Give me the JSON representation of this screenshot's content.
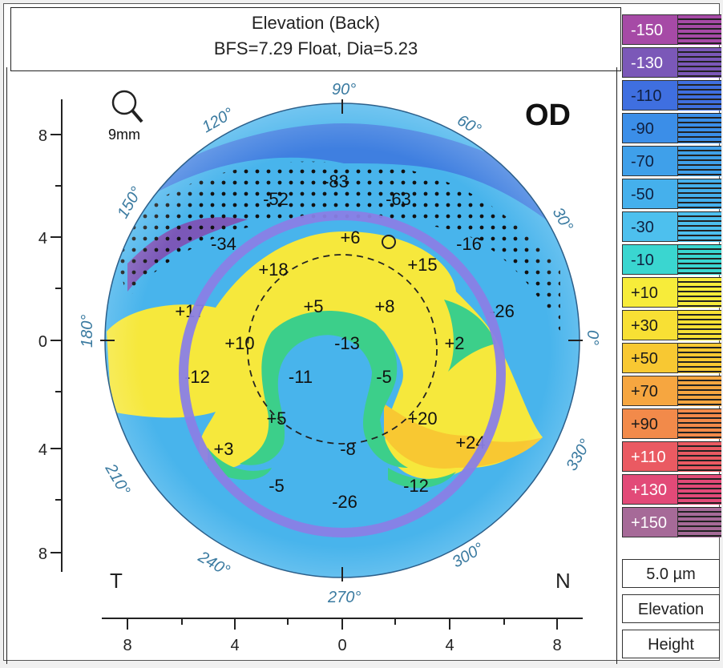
{
  "header": {
    "title": "Elevation (Back)",
    "subtitle": "BFS=7.29 Float, Dia=5.23"
  },
  "map": {
    "eye": "OD",
    "zoom_label": "9mm",
    "temporal": "T",
    "nasal": "N",
    "angles": [
      "90°",
      "60°",
      "30°",
      "0°",
      "330°",
      "300°",
      "270°",
      "240°",
      "210°",
      "180°",
      "150°",
      "120°"
    ],
    "y_ticks": [
      "8",
      "4",
      "0",
      "4",
      "8"
    ],
    "x_ticks": [
      "8",
      "4",
      "0",
      "4",
      "8"
    ],
    "values": [
      "-83",
      "-52",
      "-63",
      "-34",
      "+6",
      "-16",
      "+18",
      "+15",
      "+17",
      "+5",
      "+8",
      "-26",
      "+10",
      "-13",
      "+2",
      "-12",
      "-11",
      "-5",
      "+5",
      "+20",
      "+3",
      "-8",
      "+24",
      "-5",
      "-12",
      "-26"
    ],
    "highlight_color": "#8a7fe6"
  },
  "scale": {
    "levels": [
      {
        "label": "-150",
        "color": "#a64aa6"
      },
      {
        "label": "-130",
        "color": "#7b58b8"
      },
      {
        "label": "-110",
        "color": "#3f6fe0"
      },
      {
        "label": "-90",
        "color": "#3b8ee8"
      },
      {
        "label": "-70",
        "color": "#3fa0ea"
      },
      {
        "label": "-50",
        "color": "#45b0ec"
      },
      {
        "label": "-30",
        "color": "#4dc0ee"
      },
      {
        "label": "-10",
        "color": "#3ad6d0"
      },
      {
        "label": "+10",
        "color": "#f7ec3a"
      },
      {
        "label": "+30",
        "color": "#f8e034"
      },
      {
        "label": "+50",
        "color": "#f8c832"
      },
      {
        "label": "+70",
        "color": "#f6a640"
      },
      {
        "label": "+90",
        "color": "#f28a4a"
      },
      {
        "label": "+110",
        "color": "#ea5a62"
      },
      {
        "label": "+130",
        "color": "#e24a78"
      },
      {
        "label": "+150",
        "color": "#a66a98"
      }
    ],
    "step": "5.0 µm",
    "mode": "Elevation",
    "type": "Height"
  }
}
